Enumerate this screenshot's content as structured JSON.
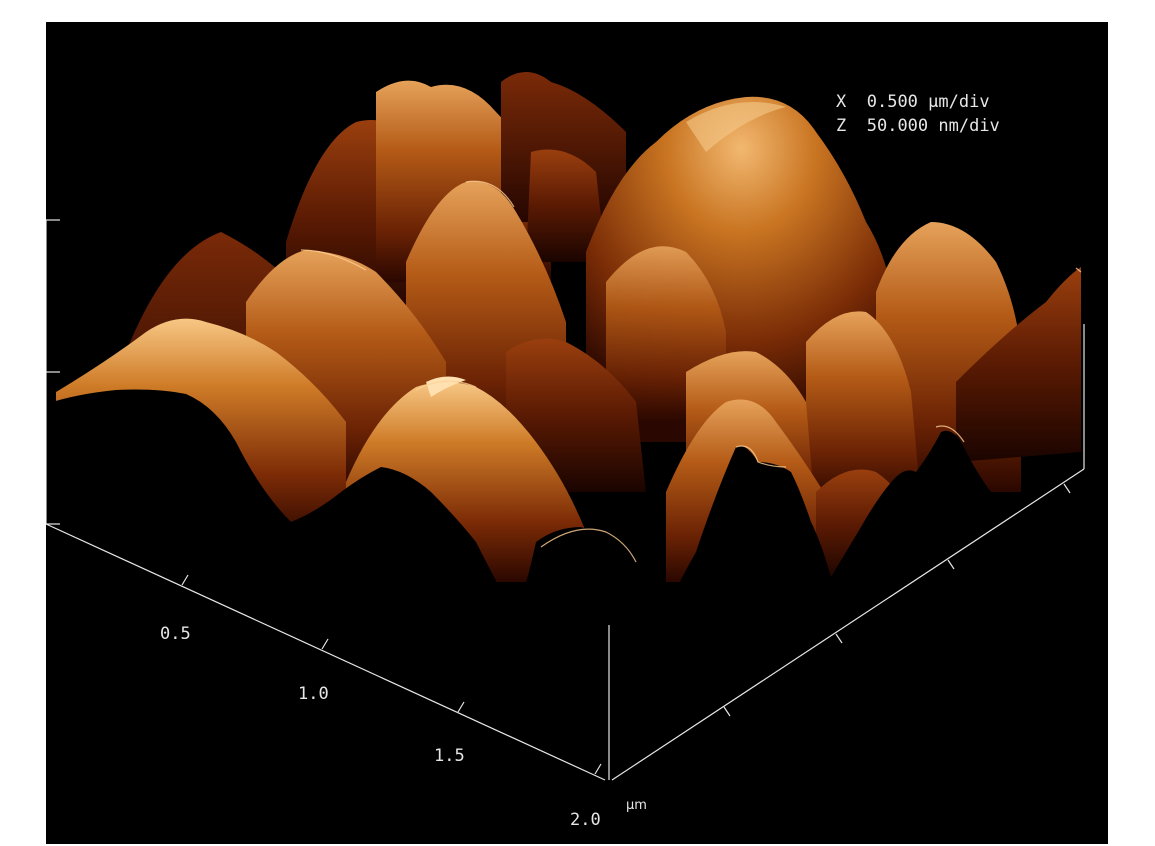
{
  "scale": {
    "x_axis_letter": "X",
    "x_value": "0.500 µm/div",
    "z_axis_letter": "Z",
    "z_value": "50.000 nm/div"
  },
  "axis": {
    "ticks": [
      "0.5",
      "1.0",
      "1.5",
      "2.0"
    ],
    "unit": "µm"
  },
  "colors": {
    "background": "#000000",
    "surface_dark": "#2a0700",
    "surface_mid": "#7a2a05",
    "surface_light": "#c8701c",
    "highlight": "#ffd7a0",
    "axis_line": "#e6e6e6"
  }
}
